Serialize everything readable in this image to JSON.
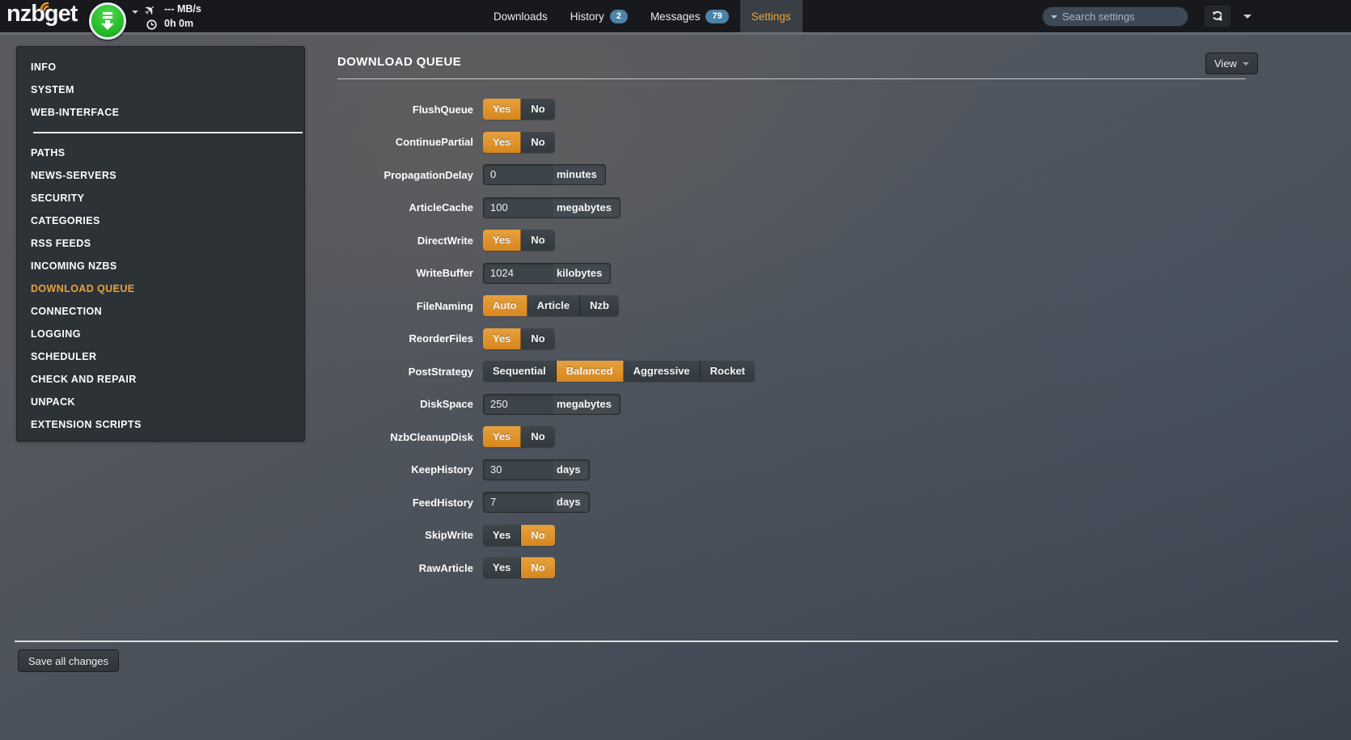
{
  "navbar": {
    "logo": "nzbget",
    "speed": "--- MB/s",
    "time_left": "0h 0m",
    "tabs": [
      {
        "id": "downloads",
        "label": "Downloads",
        "badge": null,
        "active": false
      },
      {
        "id": "history",
        "label": "History",
        "badge": "2",
        "active": false
      },
      {
        "id": "messages",
        "label": "Messages",
        "badge": "79",
        "active": false
      },
      {
        "id": "settings",
        "label": "Settings",
        "badge": null,
        "active": true
      }
    ],
    "search": {
      "placeholder": "Search settings"
    }
  },
  "sidebar": {
    "groups": [
      {
        "items": [
          {
            "label": "INFO"
          },
          {
            "label": "SYSTEM"
          },
          {
            "label": "WEB-INTERFACE"
          }
        ]
      },
      {
        "items": [
          {
            "label": "PATHS"
          },
          {
            "label": "NEWS-SERVERS"
          },
          {
            "label": "SECURITY"
          },
          {
            "label": "CATEGORIES"
          },
          {
            "label": "RSS FEEDS"
          },
          {
            "label": "INCOMING NZBS"
          },
          {
            "label": "DOWNLOAD QUEUE",
            "active": true
          },
          {
            "label": "CONNECTION"
          },
          {
            "label": "LOGGING"
          },
          {
            "label": "SCHEDULER"
          },
          {
            "label": "CHECK AND REPAIR"
          },
          {
            "label": "UNPACK"
          },
          {
            "label": "EXTENSION SCRIPTS"
          }
        ]
      }
    ]
  },
  "main": {
    "title": "DOWNLOAD QUEUE",
    "view_button": "View",
    "settings": [
      {
        "name": "FlushQueue",
        "type": "toggle",
        "options": [
          "Yes",
          "No"
        ],
        "selected": "Yes"
      },
      {
        "name": "ContinuePartial",
        "type": "toggle",
        "options": [
          "Yes",
          "No"
        ],
        "selected": "Yes"
      },
      {
        "name": "PropagationDelay",
        "type": "input",
        "value": "0",
        "unit": "minutes"
      },
      {
        "name": "ArticleCache",
        "type": "input",
        "value": "100",
        "unit": "megabytes"
      },
      {
        "name": "DirectWrite",
        "type": "toggle",
        "options": [
          "Yes",
          "No"
        ],
        "selected": "Yes"
      },
      {
        "name": "WriteBuffer",
        "type": "input",
        "value": "1024",
        "unit": "kilobytes"
      },
      {
        "name": "FileNaming",
        "type": "toggle",
        "options": [
          "Auto",
          "Article",
          "Nzb"
        ],
        "selected": "Auto"
      },
      {
        "name": "ReorderFiles",
        "type": "toggle",
        "options": [
          "Yes",
          "No"
        ],
        "selected": "Yes"
      },
      {
        "name": "PostStrategy",
        "type": "toggle",
        "options": [
          "Sequential",
          "Balanced",
          "Aggressive",
          "Rocket"
        ],
        "selected": "Balanced"
      },
      {
        "name": "DiskSpace",
        "type": "input",
        "value": "250",
        "unit": "megabytes"
      },
      {
        "name": "NzbCleanupDisk",
        "type": "toggle",
        "options": [
          "Yes",
          "No"
        ],
        "selected": "Yes"
      },
      {
        "name": "KeepHistory",
        "type": "input",
        "value": "30",
        "unit": "days"
      },
      {
        "name": "FeedHistory",
        "type": "input",
        "value": "7",
        "unit": "days"
      },
      {
        "name": "SkipWrite",
        "type": "toggle",
        "options": [
          "Yes",
          "No"
        ],
        "selected": "No"
      },
      {
        "name": "RawArticle",
        "type": "toggle",
        "options": [
          "Yes",
          "No"
        ],
        "selected": "No"
      }
    ],
    "save_button": "Save all changes"
  },
  "colors": {
    "accent_orange": "#e8a33d",
    "button_orange": "#dd8f2b",
    "badge_blue": "#4d83a8",
    "download_green": "#2fc42f",
    "navbar_bg": "#17191c"
  }
}
